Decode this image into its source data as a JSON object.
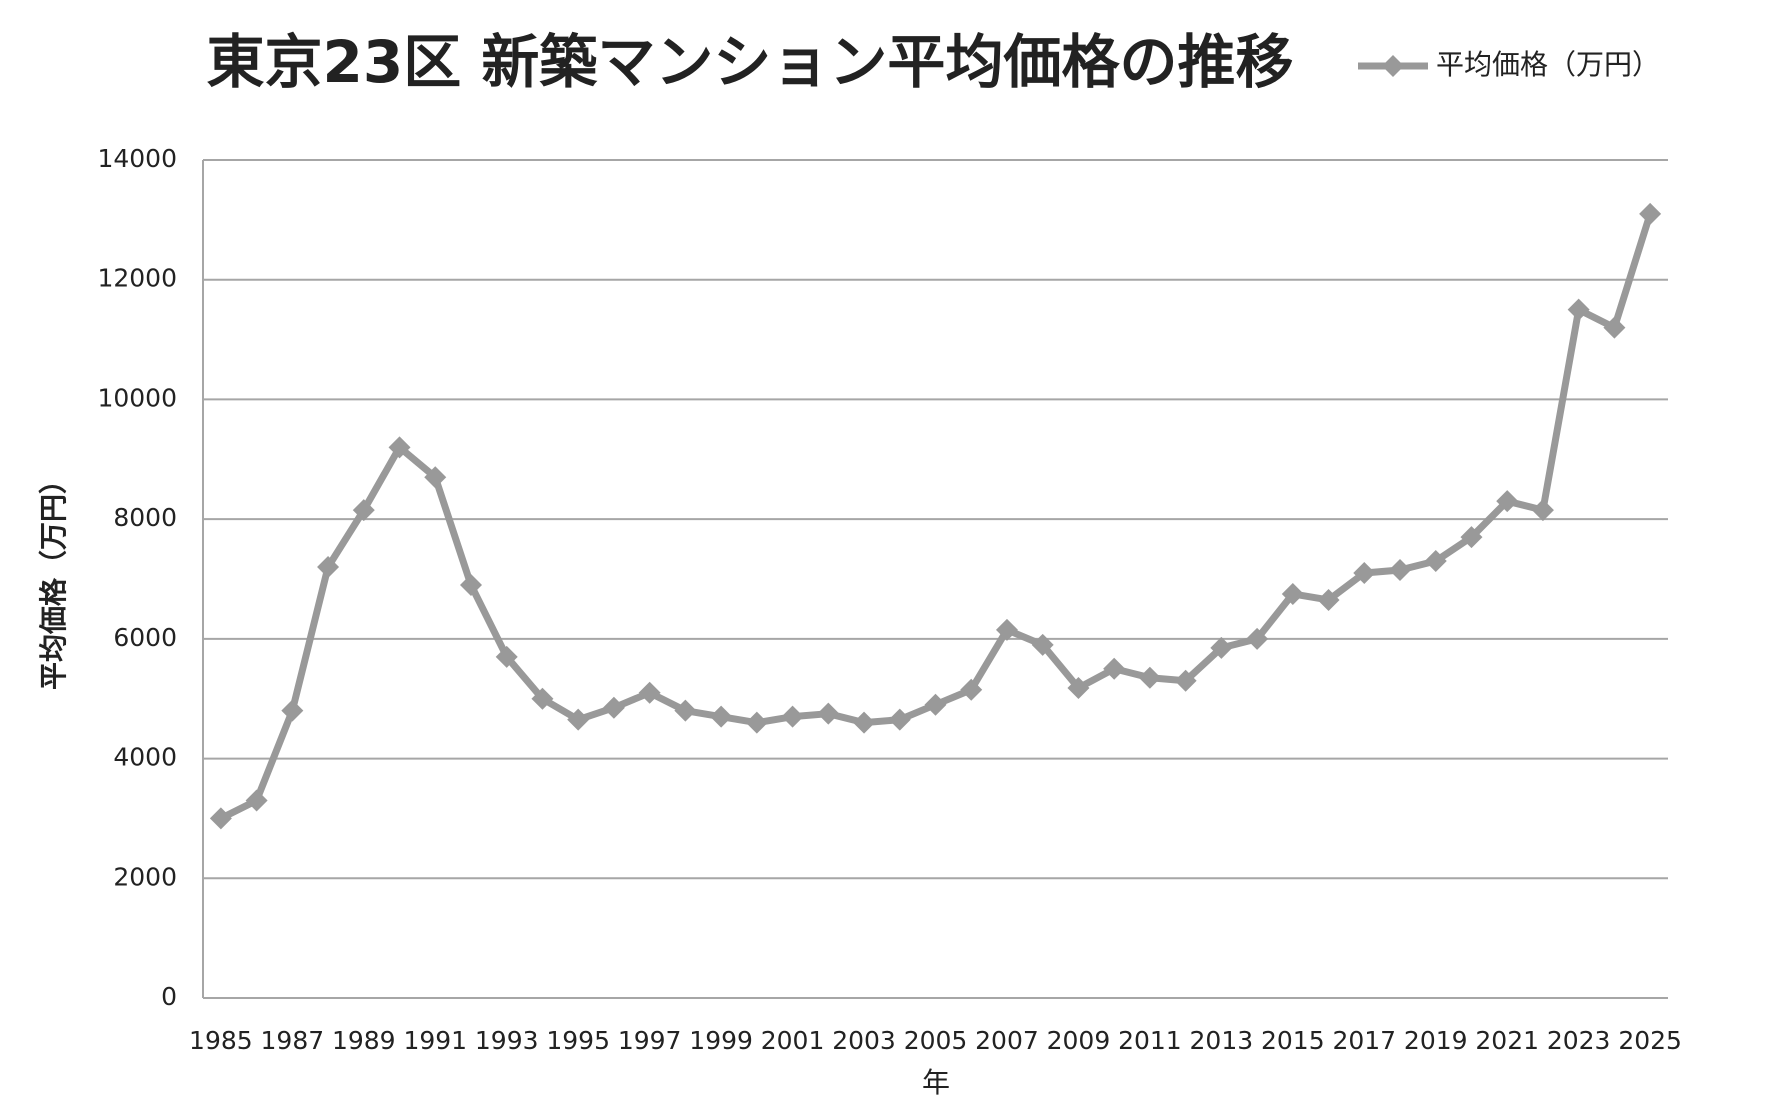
{
  "chart_data": {
    "type": "line",
    "title": "東京23区 新築マンション平均価格の推移",
    "x_label": "年",
    "y_label": "平均価格（万円）",
    "categories": [
      "1985",
      null,
      "1987",
      null,
      "1989",
      null,
      "1991",
      null,
      "1993",
      null,
      "1995",
      null,
      "1997",
      null,
      "1999",
      null,
      "2001",
      null,
      "2003",
      null,
      "2005",
      null,
      "2007",
      null,
      "2009",
      null,
      "2011",
      null,
      "2013",
      null,
      "2015",
      null,
      "2017",
      null,
      "2019",
      null,
      "2021",
      null,
      "2023",
      null,
      "2025"
    ],
    "series": [
      {
        "name": "平均価格（万円）",
        "color": "#999999",
        "values": [
          3000,
          3300,
          4800,
          7200,
          8150,
          9200,
          8700,
          6900,
          5700,
          5000,
          4650,
          4850,
          5100,
          4800,
          4700,
          4600,
          4700,
          4750,
          4600,
          4650,
          4900,
          5150,
          6150,
          5900,
          5180,
          5500,
          5350,
          5300,
          5850,
          6000,
          6750,
          6650,
          7100,
          7150,
          7300,
          7700,
          8300,
          8150,
          11500,
          11200,
          13100
        ]
      }
    ],
    "ylim": [
      0,
      14000
    ],
    "yticks": [
      0,
      2000,
      4000,
      6000,
      8000,
      10000,
      12000,
      14000
    ],
    "grid": true,
    "legend": "top-right"
  }
}
